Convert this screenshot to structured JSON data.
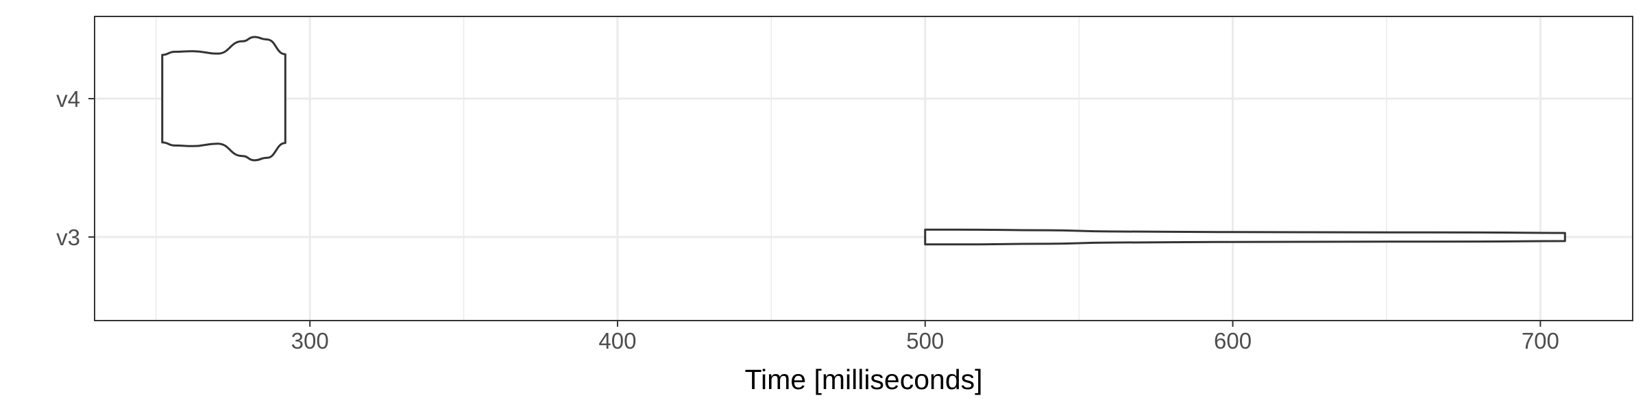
{
  "chart_data": {
    "type": "violin",
    "title": "",
    "xlabel": "Time [milliseconds]",
    "ylabel": "",
    "xlim": [
      230,
      730
    ],
    "x_ticks": [
      300,
      400,
      500,
      600,
      700
    ],
    "x_tick_labels": [
      "300",
      "400",
      "500",
      "600",
      "700"
    ],
    "categories": [
      "v3",
      "v4"
    ],
    "grid": true,
    "legend": "none",
    "colors": {
      "outline": "#333333",
      "grid": "#ebebeb",
      "panel_border": "#333333",
      "background": "#ffffff"
    },
    "series": [
      {
        "category": "v4",
        "range": [
          252,
          292
        ],
        "density_profile": [
          [
            252,
            0.71
          ],
          [
            256,
            0.76
          ],
          [
            262,
            0.77
          ],
          [
            270,
            0.73
          ],
          [
            278,
            0.93
          ],
          [
            282,
            1.0
          ],
          [
            286,
            0.96
          ],
          [
            292,
            0.72
          ]
        ]
      },
      {
        "category": "v3",
        "range": [
          500,
          708
        ],
        "density_profile": [
          [
            500,
            0.12
          ],
          [
            510,
            0.12
          ],
          [
            540,
            0.11
          ],
          [
            560,
            0.09
          ],
          [
            600,
            0.08
          ],
          [
            650,
            0.075
          ],
          [
            680,
            0.074
          ],
          [
            708,
            0.065
          ]
        ]
      }
    ]
  }
}
